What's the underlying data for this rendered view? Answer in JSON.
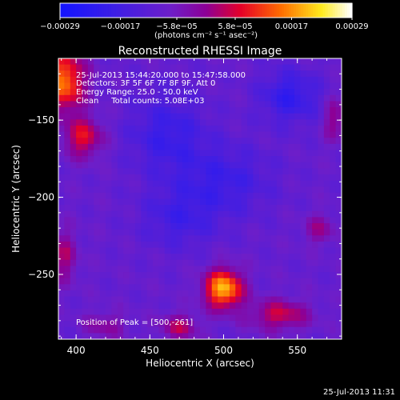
{
  "chart_data": {
    "type": "heatmap",
    "title": "Reconstructed RHESSI Image",
    "xlabel": "Heliocentric X (arcsec)",
    "ylabel": "Heliocentric Y (arcsec)",
    "xlim": [
      388,
      580
    ],
    "ylim": [
      -292,
      -110
    ],
    "x_ticks": [
      {
        "value": 400,
        "label": "400"
      },
      {
        "value": 450,
        "label": "450"
      },
      {
        "value": 500,
        "label": "500"
      },
      {
        "value": 550,
        "label": "550"
      }
    ],
    "y_ticks": [
      {
        "value": -150,
        "label": "−150"
      },
      {
        "value": -200,
        "label": "−200"
      },
      {
        "value": -250,
        "label": "−250"
      }
    ],
    "colorbar": {
      "range": [
        -0.00029,
        0.00029
      ],
      "ticks": [
        {
          "value": -0.00029,
          "label": "−0.00029"
        },
        {
          "value": -0.00017,
          "label": "−0.00017"
        },
        {
          "value": -5.8e-05,
          "label": "−5.8e−05"
        },
        {
          "value": 5.8e-05,
          "label": "5.8e−05"
        },
        {
          "value": 0.00017,
          "label": "0.00017"
        },
        {
          "value": 0.00029,
          "label": "0.00029"
        }
      ],
      "units_label": "(photons cm⁻² s⁻¹ asec⁻²)"
    },
    "annotations": [
      "25-Jul-2013 15:44:20.000 to 15:47:58.000",
      "Detectors: 3F 5F 6F 7F 8F 9F, Att 0",
      "Energy Range: 25.0 - 50.0 keV",
      "Clean     Total counts: 5.08E+03"
    ],
    "peak_label": "Position of Peak = [500,-261]",
    "peak_position": [
      500,
      -261
    ],
    "sources": [
      {
        "x": 500,
        "y": -261,
        "amp": 0.00029,
        "sx": 9,
        "sy": 9
      },
      {
        "x": 392,
        "y": -125,
        "amp": 0.00024,
        "sx": 10,
        "sy": 14
      },
      {
        "x": 405,
        "y": -162,
        "amp": 0.00016,
        "sx": 9,
        "sy": 9
      },
      {
        "x": 538,
        "y": -278,
        "amp": 0.00014,
        "sx": 14,
        "sy": 7
      },
      {
        "x": 470,
        "y": -286,
        "amp": 0.00012,
        "sx": 9,
        "sy": 6
      },
      {
        "x": 392,
        "y": -240,
        "amp": 0.00011,
        "sx": 6,
        "sy": 12
      },
      {
        "x": 575,
        "y": -150,
        "amp": 0.0001,
        "sx": 5,
        "sy": 10
      },
      {
        "x": 565,
        "y": -222,
        "amp": 9e-05,
        "sx": 7,
        "sy": 7
      },
      {
        "x": 420,
        "y": -285,
        "amp": 8e-05,
        "sx": 10,
        "sy": 6
      },
      {
        "x": 462,
        "y": -160,
        "amp": -0.0001,
        "sx": 18,
        "sy": 18
      },
      {
        "x": 500,
        "y": -190,
        "amp": -9e-05,
        "sx": 22,
        "sy": 16
      },
      {
        "x": 545,
        "y": -135,
        "amp": -0.00012,
        "sx": 14,
        "sy": 12
      },
      {
        "x": 470,
        "y": -215,
        "amp": -8e-05,
        "sx": 18,
        "sy": 14
      }
    ],
    "pixel_size_arcsec": 4,
    "colors": {
      "background": "#000000",
      "text": "#ffffff"
    }
  },
  "footer": {
    "timestamp": "25-Jul-2013 11:31"
  }
}
